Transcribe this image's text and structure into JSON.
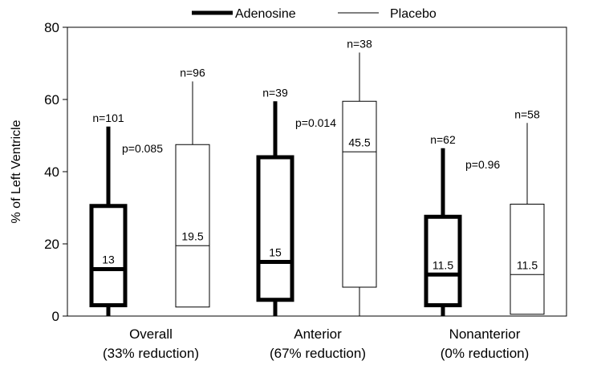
{
  "chart_data": {
    "type": "boxplot",
    "ylabel": "% of Left Ventricle",
    "ylim": [
      0,
      80
    ],
    "yticks": [
      0,
      20,
      40,
      60,
      80
    ],
    "legend": {
      "placement": "top",
      "entries": [
        "Adenosine",
        "Placebo"
      ]
    },
    "groups": [
      {
        "label_line1": "Overall",
        "label_line2": "(33% reduction)",
        "p_label": "p=0.085"
      },
      {
        "label_line1": "Anterior",
        "label_line2": "(67% reduction)",
        "p_label": "p=0.014"
      },
      {
        "label_line1": "Nonanterior",
        "label_line2": "(0% reduction)",
        "p_label": "p=0.96"
      }
    ],
    "series": [
      {
        "name": "Adenosine",
        "style": "thick",
        "boxes": [
          {
            "whisker_low": 0,
            "q1": 3,
            "median": 13,
            "q3": 30.5,
            "whisker_high": 52.5,
            "n_label": "n=101",
            "median_label": "13"
          },
          {
            "whisker_low": 0,
            "q1": 4.5,
            "median": 15,
            "q3": 44,
            "whisker_high": 59.5,
            "n_label": "n=39",
            "median_label": "15"
          },
          {
            "whisker_low": 0,
            "q1": 3,
            "median": 11.5,
            "q3": 27.5,
            "whisker_high": 46.5,
            "n_label": "n=62",
            "median_label": "11.5"
          }
        ]
      },
      {
        "name": "Placebo",
        "style": "thin",
        "boxes": [
          {
            "whisker_low": 2.5,
            "q1": 2.5,
            "median": 19.5,
            "q3": 47.5,
            "whisker_high": 65,
            "n_label": "n=96",
            "median_label": "19.5"
          },
          {
            "whisker_low": 0,
            "q1": 8,
            "median": 45.5,
            "q3": 59.5,
            "whisker_high": 73,
            "n_label": "n=38",
            "median_label": "45.5"
          },
          {
            "whisker_low": 0.5,
            "q1": 0.5,
            "median": 11.5,
            "q3": 31,
            "whisker_high": 53.5,
            "n_label": "n=58",
            "median_label": "11.5"
          }
        ]
      }
    ]
  }
}
